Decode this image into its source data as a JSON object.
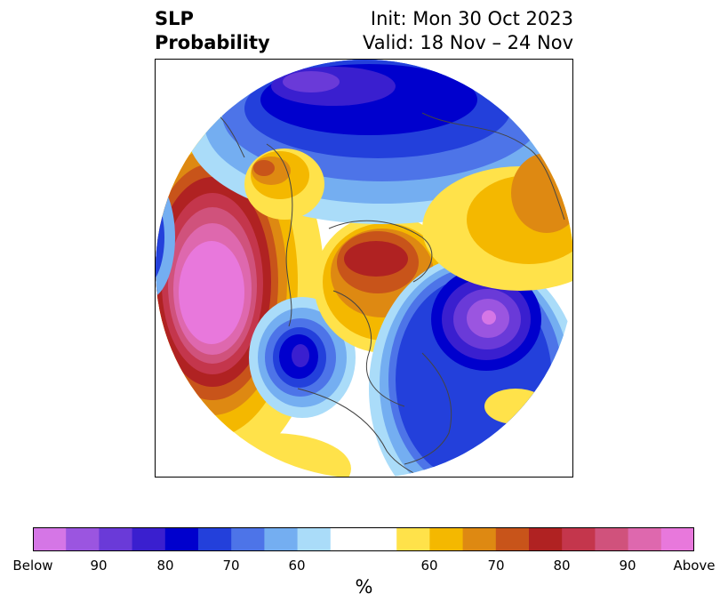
{
  "title": {
    "left_line1": "SLP",
    "left_line2": "Probability",
    "right_line1": "Init: Mon 30 Oct 2023",
    "right_line2": "Valid: 18 Nov – 24 Nov"
  },
  "colorbar": {
    "unit": "%",
    "tick_labels": [
      "Below",
      "90",
      "80",
      "70",
      "60",
      "60",
      "70",
      "80",
      "90",
      "Above"
    ],
    "below_colors": [
      "#d576e6",
      "#9b55e0",
      "#6a3ad8",
      "#3a1fcf",
      "#0000cd",
      "#2340db",
      "#4d74e8",
      "#74aef1",
      "#aadcf9"
    ],
    "neutral_color": "#ffffff",
    "above_colors": [
      "#ffe24a",
      "#f4b800",
      "#de8912",
      "#c8541a",
      "#b02222",
      "#c4364c",
      "#d0527c",
      "#de68ae",
      "#e878dc"
    ]
  },
  "map": {
    "projection": "north-polar-stereographic",
    "features": {
      "north_pacific": {
        "anomaly": "above",
        "peak": "Above"
      },
      "western_north_america": {
        "anomaly": "below",
        "peak": "80"
      },
      "north_atlantic": {
        "anomaly": "below",
        "peak": "Below"
      },
      "arctic_ocean": {
        "anomaly": "above",
        "peak": "80"
      },
      "northern_europe": {
        "anomaly": "below",
        "peak": "80"
      },
      "central_asia": {
        "anomaly": "above",
        "peak": "70"
      },
      "east_asia": {
        "anomaly": "above",
        "peak": "70"
      }
    }
  }
}
